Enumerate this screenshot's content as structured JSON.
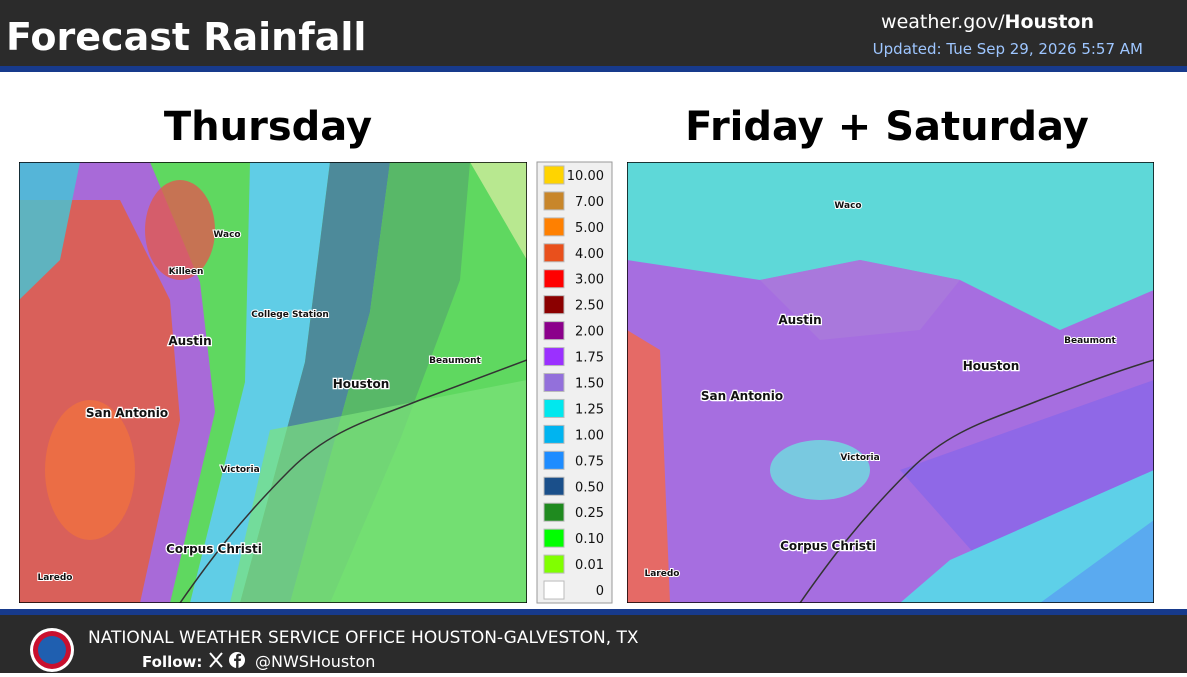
{
  "header": {
    "title": "Forecast Rainfall",
    "site_prefix": "weather.gov/",
    "site_office": "Houston",
    "updated": "Updated: Tue Sep 29, 2026 5:57 AM"
  },
  "panels": [
    {
      "title": "Thursday",
      "cities": [
        "Waco",
        "Killeen",
        "College Station",
        "Austin",
        "Houston",
        "Beaumont",
        "San Antonio",
        "Victoria",
        "Corpus Christi",
        "Laredo"
      ]
    },
    {
      "title": "Friday + Saturday",
      "cities": [
        "Waco",
        "Austin",
        "Houston",
        "Beaumont",
        "San Antonio",
        "Victoria",
        "Corpus Christi",
        "Laredo"
      ]
    }
  ],
  "legend": {
    "labels": [
      "10.00",
      "7.00",
      "5.00",
      "4.00",
      "3.00",
      "2.50",
      "2.00",
      "1.75",
      "1.50",
      "1.25",
      "1.00",
      "0.75",
      "0.50",
      "0.25",
      "0.10",
      "0.01",
      "0"
    ],
    "colors": [
      "#ffd400",
      "#c8862a",
      "#ff8000",
      "#e9501c",
      "#ff0000",
      "#8b0000",
      "#8b008b",
      "#9b30ff",
      "#9370db",
      "#00e8ee",
      "#00b4f0",
      "#1e8cff",
      "#1a4f8a",
      "#1f8a1f",
      "#00ff00",
      "#80ff00",
      "#ffffff"
    ]
  },
  "footer": {
    "office": "NATIONAL WEATHER SERVICE OFFICE HOUSTON-GALVESTON, TX",
    "follow": "Follow:",
    "handle": "@NWSHouston"
  }
}
